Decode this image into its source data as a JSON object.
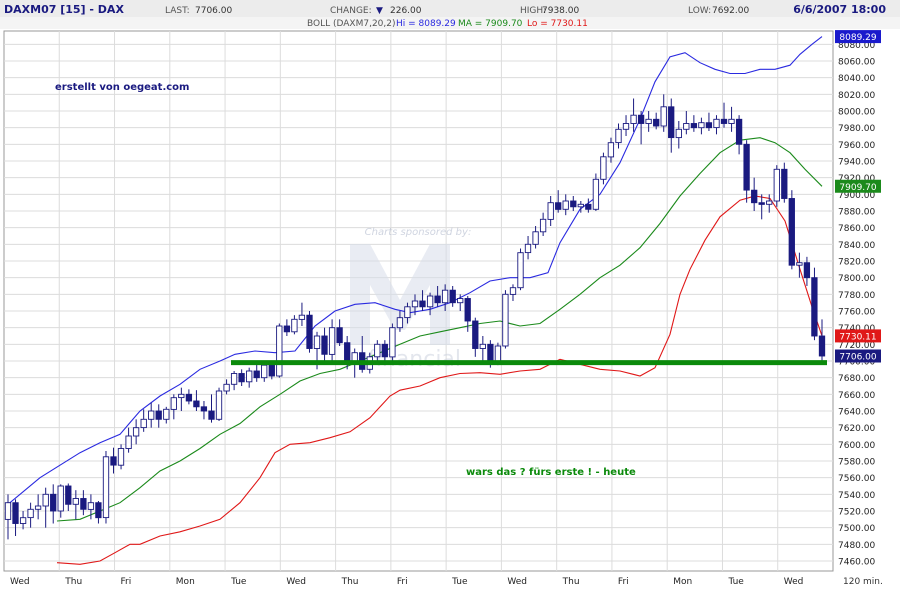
{
  "header": {
    "symbol": "DAXM07 [15] - DAX",
    "last_label": "LAST:",
    "last_value": "7706.00",
    "change_label": "CHANGE:",
    "change_arrow": "▼",
    "change_value": "226.00",
    "high_label": "HIGH:",
    "high_value": "7938.00",
    "low_label": "LOW:",
    "low_value": "7692.00",
    "datetime": "6/6/2007 18:00",
    "boll_label": "BOLL (DAXM7,20,2)",
    "boll_hi": "Hi = 8089.29",
    "boll_ma": "MA = 7909.70",
    "boll_lo": "Lo = 7730.11"
  },
  "annotations": {
    "credit": "erstellt von oegeat.com",
    "sponsor": "Charts sponsored by:",
    "watermark": "financial",
    "comment": "wars das ? fürs erste  ! - heute"
  },
  "chart_data": {
    "type": "candlestick",
    "interval_label": "120 min.",
    "ylim": [
      7448,
      8096
    ],
    "yticks": [
      7460,
      7480,
      7500,
      7520,
      7540,
      7560,
      7580,
      7600,
      7620,
      7640,
      7660,
      7680,
      7700,
      7720,
      7740,
      7760,
      7780,
      7800,
      7820,
      7840,
      7860,
      7880,
      7900,
      7920,
      7940,
      7960,
      7980,
      8000,
      8020,
      8040,
      8060,
      8080
    ],
    "x_labels": [
      "Wed",
      "Thu",
      "Fri",
      "Mon",
      "Tue",
      "Wed",
      "Thu",
      "Fri",
      "Tue",
      "Wed",
      "Thu",
      "Fri",
      "Mon",
      "Tue",
      "Wed"
    ],
    "price_tags": [
      {
        "value": 8089.29,
        "text": "8089.29",
        "color": "#1a1acc"
      },
      {
        "value": 7909.7,
        "text": "7909.70",
        "color": "#1b8a1b"
      },
      {
        "value": 7730.11,
        "text": "7730.11",
        "color": "#e01818"
      },
      {
        "value": 7706.0,
        "text": "7706.00",
        "color": "#1a1a80"
      }
    ],
    "support_level": 7698,
    "colors": {
      "up": "#ffffff",
      "down": "#1a1a80",
      "outline": "#1a1a80",
      "upper": "#2a2ae0",
      "middle": "#1b8a1b",
      "lower": "#e01818",
      "support": "#0b8a0b",
      "accent": "#1a1a80"
    },
    "candles": [
      {
        "o": 7510,
        "h": 7540,
        "l": 7486,
        "c": 7530
      },
      {
        "o": 7530,
        "h": 7534,
        "l": 7490,
        "c": 7505
      },
      {
        "o": 7505,
        "h": 7520,
        "l": 7498,
        "c": 7512
      },
      {
        "o": 7512,
        "h": 7530,
        "l": 7500,
        "c": 7522
      },
      {
        "o": 7522,
        "h": 7540,
        "l": 7510,
        "c": 7526
      },
      {
        "o": 7526,
        "h": 7548,
        "l": 7500,
        "c": 7540
      },
      {
        "o": 7540,
        "h": 7552,
        "l": 7505,
        "c": 7520
      },
      {
        "o": 7520,
        "h": 7552,
        "l": 7512,
        "c": 7550
      },
      {
        "o": 7550,
        "h": 7553,
        "l": 7520,
        "c": 7528
      },
      {
        "o": 7528,
        "h": 7545,
        "l": 7510,
        "c": 7535
      },
      {
        "o": 7535,
        "h": 7545,
        "l": 7515,
        "c": 7522
      },
      {
        "o": 7522,
        "h": 7540,
        "l": 7510,
        "c": 7530
      },
      {
        "o": 7530,
        "h": 7532,
        "l": 7505,
        "c": 7512
      },
      {
        "o": 7512,
        "h": 7592,
        "l": 7505,
        "c": 7585
      },
      {
        "o": 7585,
        "h": 7596,
        "l": 7565,
        "c": 7575
      },
      {
        "o": 7575,
        "h": 7600,
        "l": 7570,
        "c": 7595
      },
      {
        "o": 7595,
        "h": 7620,
        "l": 7590,
        "c": 7610
      },
      {
        "o": 7610,
        "h": 7630,
        "l": 7600,
        "c": 7620
      },
      {
        "o": 7620,
        "h": 7642,
        "l": 7615,
        "c": 7630
      },
      {
        "o": 7630,
        "h": 7650,
        "l": 7620,
        "c": 7640
      },
      {
        "o": 7640,
        "h": 7648,
        "l": 7620,
        "c": 7630
      },
      {
        "o": 7630,
        "h": 7645,
        "l": 7625,
        "c": 7642
      },
      {
        "o": 7642,
        "h": 7660,
        "l": 7630,
        "c": 7656
      },
      {
        "o": 7656,
        "h": 7668,
        "l": 7640,
        "c": 7660
      },
      {
        "o": 7660,
        "h": 7666,
        "l": 7648,
        "c": 7652
      },
      {
        "o": 7652,
        "h": 7665,
        "l": 7640,
        "c": 7645
      },
      {
        "o": 7645,
        "h": 7652,
        "l": 7630,
        "c": 7640
      },
      {
        "o": 7640,
        "h": 7660,
        "l": 7626,
        "c": 7630
      },
      {
        "o": 7630,
        "h": 7668,
        "l": 7628,
        "c": 7664
      },
      {
        "o": 7664,
        "h": 7678,
        "l": 7660,
        "c": 7672
      },
      {
        "o": 7672,
        "h": 7688,
        "l": 7665,
        "c": 7685
      },
      {
        "o": 7685,
        "h": 7690,
        "l": 7670,
        "c": 7675
      },
      {
        "o": 7675,
        "h": 7692,
        "l": 7668,
        "c": 7688
      },
      {
        "o": 7688,
        "h": 7700,
        "l": 7675,
        "c": 7680
      },
      {
        "o": 7680,
        "h": 7698,
        "l": 7675,
        "c": 7695
      },
      {
        "o": 7695,
        "h": 7700,
        "l": 7678,
        "c": 7682
      },
      {
        "o": 7682,
        "h": 7745,
        "l": 7680,
        "c": 7742
      },
      {
        "o": 7742,
        "h": 7750,
        "l": 7730,
        "c": 7735
      },
      {
        "o": 7735,
        "h": 7755,
        "l": 7732,
        "c": 7750
      },
      {
        "o": 7750,
        "h": 7770,
        "l": 7742,
        "c": 7755
      },
      {
        "o": 7755,
        "h": 7760,
        "l": 7710,
        "c": 7715
      },
      {
        "o": 7715,
        "h": 7735,
        "l": 7690,
        "c": 7730
      },
      {
        "o": 7730,
        "h": 7740,
        "l": 7700,
        "c": 7708
      },
      {
        "o": 7708,
        "h": 7750,
        "l": 7700,
        "c": 7740
      },
      {
        "o": 7740,
        "h": 7750,
        "l": 7718,
        "c": 7722
      },
      {
        "o": 7722,
        "h": 7730,
        "l": 7690,
        "c": 7700
      },
      {
        "o": 7700,
        "h": 7715,
        "l": 7680,
        "c": 7710
      },
      {
        "o": 7710,
        "h": 7730,
        "l": 7686,
        "c": 7690
      },
      {
        "o": 7690,
        "h": 7710,
        "l": 7685,
        "c": 7705
      },
      {
        "o": 7705,
        "h": 7725,
        "l": 7698,
        "c": 7720
      },
      {
        "o": 7720,
        "h": 7725,
        "l": 7700,
        "c": 7705
      },
      {
        "o": 7705,
        "h": 7745,
        "l": 7700,
        "c": 7740
      },
      {
        "o": 7740,
        "h": 7760,
        "l": 7735,
        "c": 7752
      },
      {
        "o": 7752,
        "h": 7770,
        "l": 7745,
        "c": 7765
      },
      {
        "o": 7765,
        "h": 7780,
        "l": 7755,
        "c": 7772
      },
      {
        "o": 7772,
        "h": 7785,
        "l": 7760,
        "c": 7765
      },
      {
        "o": 7765,
        "h": 7782,
        "l": 7755,
        "c": 7778
      },
      {
        "o": 7778,
        "h": 7790,
        "l": 7765,
        "c": 7770
      },
      {
        "o": 7770,
        "h": 7792,
        "l": 7760,
        "c": 7785
      },
      {
        "o": 7785,
        "h": 7790,
        "l": 7765,
        "c": 7770
      },
      {
        "o": 7770,
        "h": 7780,
        "l": 7760,
        "c": 7775
      },
      {
        "o": 7775,
        "h": 7778,
        "l": 7735,
        "c": 7748
      },
      {
        "o": 7748,
        "h": 7752,
        "l": 7705,
        "c": 7715
      },
      {
        "o": 7715,
        "h": 7730,
        "l": 7698,
        "c": 7720
      },
      {
        "o": 7720,
        "h": 7725,
        "l": 7692,
        "c": 7700
      },
      {
        "o": 7700,
        "h": 7722,
        "l": 7695,
        "c": 7718
      },
      {
        "o": 7718,
        "h": 7785,
        "l": 7715,
        "c": 7780
      },
      {
        "o": 7780,
        "h": 7792,
        "l": 7772,
        "c": 7788
      },
      {
        "o": 7788,
        "h": 7835,
        "l": 7785,
        "c": 7830
      },
      {
        "o": 7830,
        "h": 7850,
        "l": 7822,
        "c": 7840
      },
      {
        "o": 7840,
        "h": 7862,
        "l": 7835,
        "c": 7855
      },
      {
        "o": 7855,
        "h": 7878,
        "l": 7850,
        "c": 7870
      },
      {
        "o": 7870,
        "h": 7898,
        "l": 7862,
        "c": 7890
      },
      {
        "o": 7890,
        "h": 7905,
        "l": 7878,
        "c": 7882
      },
      {
        "o": 7882,
        "h": 7900,
        "l": 7875,
        "c": 7892
      },
      {
        "o": 7892,
        "h": 7898,
        "l": 7880,
        "c": 7885
      },
      {
        "o": 7885,
        "h": 7892,
        "l": 7878,
        "c": 7888
      },
      {
        "o": 7888,
        "h": 7895,
        "l": 7878,
        "c": 7882
      },
      {
        "o": 7882,
        "h": 7925,
        "l": 7880,
        "c": 7918
      },
      {
        "o": 7918,
        "h": 7950,
        "l": 7912,
        "c": 7945
      },
      {
        "o": 7945,
        "h": 7968,
        "l": 7938,
        "c": 7962
      },
      {
        "o": 7962,
        "h": 7985,
        "l": 7955,
        "c": 7978
      },
      {
        "o": 7978,
        "h": 7995,
        "l": 7970,
        "c": 7985
      },
      {
        "o": 7985,
        "h": 8015,
        "l": 7975,
        "c": 7995
      },
      {
        "o": 7995,
        "h": 8000,
        "l": 7960,
        "c": 7985
      },
      {
        "o": 7985,
        "h": 8000,
        "l": 7975,
        "c": 7990
      },
      {
        "o": 7990,
        "h": 7998,
        "l": 7978,
        "c": 7982
      },
      {
        "o": 7982,
        "h": 8020,
        "l": 7975,
        "c": 8005
      },
      {
        "o": 8005,
        "h": 8015,
        "l": 7950,
        "c": 7968
      },
      {
        "o": 7968,
        "h": 7988,
        "l": 7955,
        "c": 7978
      },
      {
        "o": 7978,
        "h": 8000,
        "l": 7972,
        "c": 7985
      },
      {
        "o": 7985,
        "h": 7995,
        "l": 7975,
        "c": 7980
      },
      {
        "o": 7980,
        "h": 7992,
        "l": 7972,
        "c": 7986
      },
      {
        "o": 7986,
        "h": 7998,
        "l": 7976,
        "c": 7980
      },
      {
        "o": 7980,
        "h": 7995,
        "l": 7972,
        "c": 7990
      },
      {
        "o": 7990,
        "h": 8010,
        "l": 7980,
        "c": 7985
      },
      {
        "o": 7985,
        "h": 8005,
        "l": 7975,
        "c": 7990
      },
      {
        "o": 7990,
        "h": 7995,
        "l": 7948,
        "c": 7960
      },
      {
        "o": 7960,
        "h": 7965,
        "l": 7890,
        "c": 7905
      },
      {
        "o": 7905,
        "h": 7920,
        "l": 7880,
        "c": 7890
      },
      {
        "o": 7890,
        "h": 7900,
        "l": 7870,
        "c": 7888
      },
      {
        "o": 7888,
        "h": 7900,
        "l": 7878,
        "c": 7892
      },
      {
        "o": 7892,
        "h": 7935,
        "l": 7885,
        "c": 7930
      },
      {
        "o": 7930,
        "h": 7938,
        "l": 7890,
        "c": 7895
      },
      {
        "o": 7895,
        "h": 7905,
        "l": 7810,
        "c": 7815
      },
      {
        "o": 7815,
        "h": 7830,
        "l": 7800,
        "c": 7818
      },
      {
        "o": 7818,
        "h": 7825,
        "l": 7790,
        "c": 7800
      },
      {
        "o": 7800,
        "h": 7812,
        "l": 7725,
        "c": 7730
      },
      {
        "o": 7730,
        "h": 7750,
        "l": 7700,
        "c": 7706
      }
    ],
    "bollinger_upper": [
      [
        8,
        7528
      ],
      [
        25,
        7545
      ],
      [
        40,
        7560
      ],
      [
        60,
        7575
      ],
      [
        80,
        7590
      ],
      [
        100,
        7602
      ],
      [
        120,
        7612
      ],
      [
        140,
        7640
      ],
      [
        160,
        7658
      ],
      [
        180,
        7672
      ],
      [
        200,
        7690
      ],
      [
        220,
        7700
      ],
      [
        235,
        7708
      ],
      [
        255,
        7712
      ],
      [
        275,
        7710
      ],
      [
        295,
        7712
      ],
      [
        315,
        7742
      ],
      [
        335,
        7760
      ],
      [
        355,
        7768
      ],
      [
        375,
        7770
      ],
      [
        395,
        7762
      ],
      [
        410,
        7758
      ],
      [
        430,
        7762
      ],
      [
        450,
        7770
      ],
      [
        470,
        7782
      ],
      [
        490,
        7796
      ],
      [
        510,
        7800
      ],
      [
        530,
        7800
      ],
      [
        548,
        7806
      ],
      [
        560,
        7842
      ],
      [
        580,
        7882
      ],
      [
        600,
        7900
      ],
      [
        620,
        7938
      ],
      [
        640,
        7990
      ],
      [
        655,
        8035
      ],
      [
        670,
        8065
      ],
      [
        685,
        8070
      ],
      [
        700,
        8058
      ],
      [
        715,
        8050
      ],
      [
        730,
        8045
      ],
      [
        745,
        8045
      ],
      [
        760,
        8050
      ],
      [
        775,
        8050
      ],
      [
        790,
        8055
      ],
      [
        800,
        8068
      ],
      [
        812,
        8080
      ],
      [
        822,
        8089.29
      ]
    ],
    "bollinger_middle": [
      [
        57,
        7508
      ],
      [
        80,
        7510
      ],
      [
        100,
        7520
      ],
      [
        120,
        7530
      ],
      [
        140,
        7548
      ],
      [
        160,
        7568
      ],
      [
        180,
        7580
      ],
      [
        200,
        7595
      ],
      [
        220,
        7612
      ],
      [
        240,
        7625
      ],
      [
        260,
        7645
      ],
      [
        280,
        7660
      ],
      [
        300,
        7676
      ],
      [
        320,
        7685
      ],
      [
        340,
        7690
      ],
      [
        360,
        7700
      ],
      [
        380,
        7710
      ],
      [
        400,
        7720
      ],
      [
        420,
        7730
      ],
      [
        440,
        7735
      ],
      [
        460,
        7740
      ],
      [
        480,
        7745
      ],
      [
        500,
        7748
      ],
      [
        520,
        7742
      ],
      [
        540,
        7745
      ],
      [
        560,
        7762
      ],
      [
        580,
        7780
      ],
      [
        600,
        7800
      ],
      [
        620,
        7815
      ],
      [
        640,
        7836
      ],
      [
        660,
        7865
      ],
      [
        680,
        7898
      ],
      [
        700,
        7925
      ],
      [
        720,
        7950
      ],
      [
        740,
        7965
      ],
      [
        760,
        7968
      ],
      [
        775,
        7962
      ],
      [
        790,
        7950
      ],
      [
        805,
        7930
      ],
      [
        822,
        7909.7
      ]
    ],
    "bollinger_lower": [
      [
        57,
        7458
      ],
      [
        80,
        7456
      ],
      [
        100,
        7460
      ],
      [
        115,
        7470
      ],
      [
        130,
        7480
      ],
      [
        140,
        7480
      ],
      [
        160,
        7490
      ],
      [
        180,
        7495
      ],
      [
        200,
        7502
      ],
      [
        220,
        7510
      ],
      [
        240,
        7530
      ],
      [
        260,
        7560
      ],
      [
        275,
        7590
      ],
      [
        290,
        7600
      ],
      [
        310,
        7602
      ],
      [
        330,
        7608
      ],
      [
        350,
        7615
      ],
      [
        370,
        7632
      ],
      [
        390,
        7658
      ],
      [
        400,
        7665
      ],
      [
        420,
        7670
      ],
      [
        440,
        7680
      ],
      [
        460,
        7685
      ],
      [
        480,
        7686
      ],
      [
        500,
        7684
      ],
      [
        520,
        7688
      ],
      [
        540,
        7690
      ],
      [
        560,
        7702
      ],
      [
        580,
        7696
      ],
      [
        600,
        7690
      ],
      [
        620,
        7688
      ],
      [
        640,
        7682
      ],
      [
        655,
        7692
      ],
      [
        670,
        7732
      ],
      [
        680,
        7780
      ],
      [
        690,
        7810
      ],
      [
        705,
        7845
      ],
      [
        720,
        7873
      ],
      [
        740,
        7893
      ],
      [
        755,
        7898
      ],
      [
        770,
        7895
      ],
      [
        785,
        7868
      ],
      [
        800,
        7810
      ],
      [
        812,
        7765
      ],
      [
        822,
        7730.11
      ]
    ]
  }
}
